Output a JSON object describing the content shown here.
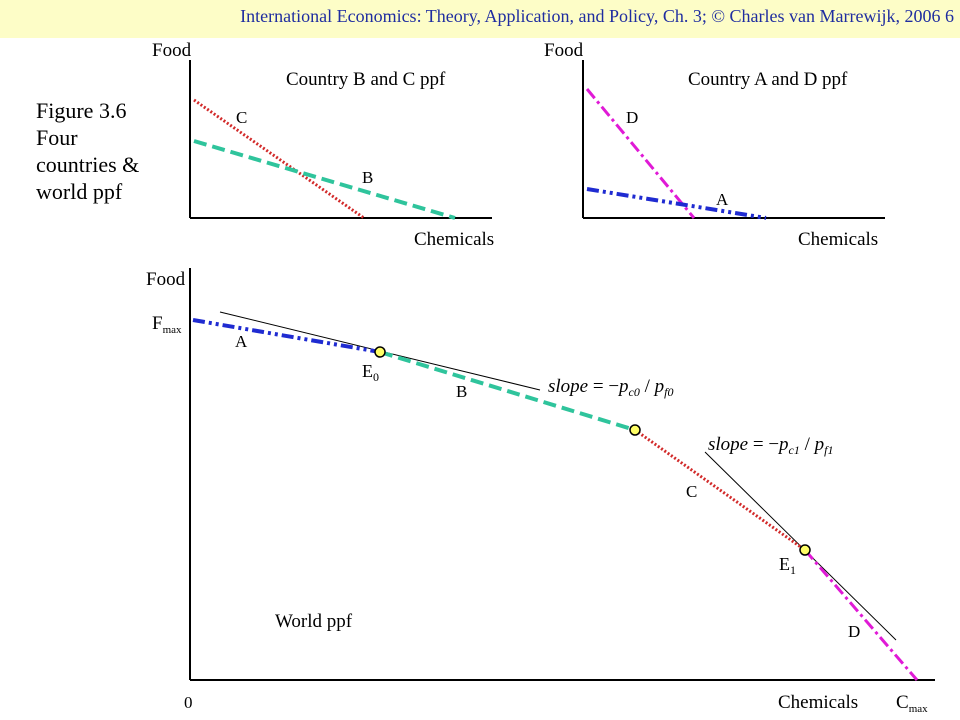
{
  "header": {
    "title": "International Economics: Theory, Application, and Policy, Ch. 3;  © Charles van Marrewijk, 2006    6"
  },
  "caption": {
    "line1": "Figure 3.6",
    "line2": "Four",
    "line3": "countries &",
    "line4": "world ppf"
  },
  "panel_bc": {
    "title": "Country B and C ppf",
    "y_label": "Food",
    "x_label": "Chemicals",
    "curve_c_label": "C",
    "curve_b_label": "B"
  },
  "panel_ad": {
    "title": "Country A and D ppf",
    "y_label": "Food",
    "x_label": "Chemicals",
    "curve_d_label": "D",
    "curve_a_label": "A"
  },
  "world": {
    "title": "World ppf",
    "y_label": "Food",
    "x_label": "Chemicals",
    "origin_label": "0",
    "fmax_main": "F",
    "fmax_sub": "max",
    "cmax_main": "C",
    "cmax_sub": "max",
    "segment_a_label": "A",
    "segment_b_label": "B",
    "segment_c_label": "C",
    "segment_d_label": "D",
    "e0_main": "E",
    "e0_sub": "0",
    "e1_main": "E",
    "e1_sub": "1",
    "slope0": {
      "word": "slope",
      "eq": " = −",
      "p1": "p",
      "p1_sub": "c0",
      "slash": " / ",
      "p2": "p",
      "p2_sub": "f0"
    },
    "slope1": {
      "word": "slope",
      "eq": " = −",
      "p1": "p",
      "p1_sub": "c1",
      "slash": " / ",
      "p2": "p",
      "p2_sub": "f1"
    }
  },
  "colors": {
    "country_a": "#1f2bd1",
    "country_b": "#2fc49c",
    "country_c": "#d22a2a",
    "country_d": "#e01ad6",
    "equilibrium_fill": "#ffff66",
    "header_bg": "#fdfdc7",
    "header_text": "#1f2da0"
  }
}
